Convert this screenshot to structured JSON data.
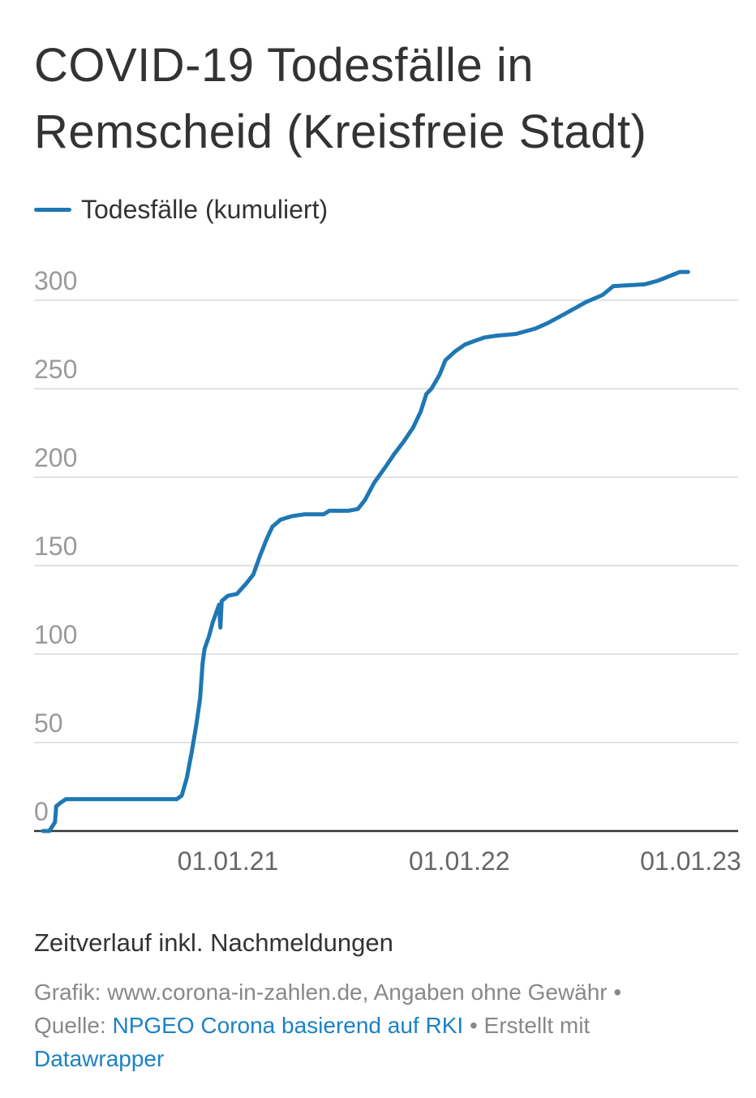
{
  "title": "COVID-19 Todesfälle in Remscheid (Kreisfreie Stadt)",
  "note": "Zeitverlauf inkl. Nachmeldungen",
  "footer": {
    "line1": "Grafik: www.corona-in-zahlen.de, Angaben ohne Gewähr •",
    "source_prefix": "Quelle: ",
    "source_link": "NPGEO Corona basierend auf RKI",
    "created_with": " • Erstellt mit",
    "tool_link": "Datawrapper"
  },
  "colors": {
    "line": "#1f77b4",
    "grid": "#e2e2e2",
    "axis": "#333333",
    "link": "#1b82c4"
  },
  "chart_data": {
    "type": "line",
    "title": "COVID-19 Todesfälle in Remscheid (Kreisfreie Stadt)",
    "legend": "top-left",
    "grid": true,
    "ylim": [
      0,
      300
    ],
    "yticks": [
      0,
      50,
      100,
      150,
      200,
      250,
      300
    ],
    "xlim": [
      "2020-03-01",
      "2023-03-17"
    ],
    "xticks": [
      {
        "date": "2021-01-01",
        "label": "01.01.21"
      },
      {
        "date": "2022-01-01",
        "label": "01.01.22"
      },
      {
        "date": "2023-01-01",
        "label": "01.01.23"
      }
    ],
    "series": [
      {
        "name": "Todesfälle (kumuliert)",
        "points": [
          [
            "2020-03-15",
            0
          ],
          [
            "2020-03-25",
            0
          ],
          [
            "2020-04-03",
            5
          ],
          [
            "2020-04-05",
            14
          ],
          [
            "2020-04-12",
            16
          ],
          [
            "2020-04-20",
            18
          ],
          [
            "2020-06-01",
            18
          ],
          [
            "2020-08-01",
            18
          ],
          [
            "2020-10-12",
            18
          ],
          [
            "2020-10-20",
            20
          ],
          [
            "2020-10-28",
            30
          ],
          [
            "2020-11-05",
            45
          ],
          [
            "2020-11-12",
            60
          ],
          [
            "2020-11-18",
            75
          ],
          [
            "2020-11-22",
            95
          ],
          [
            "2020-11-25",
            103
          ],
          [
            "2020-12-02",
            110
          ],
          [
            "2020-12-08",
            118
          ],
          [
            "2020-12-14",
            124
          ],
          [
            "2020-12-18",
            128
          ],
          [
            "2020-12-20",
            115
          ],
          [
            "2020-12-22",
            130
          ],
          [
            "2021-01-01",
            133
          ],
          [
            "2021-01-15",
            134
          ],
          [
            "2021-01-30",
            140
          ],
          [
            "2021-02-10",
            145
          ],
          [
            "2021-02-20",
            155
          ],
          [
            "2021-03-03",
            165
          ],
          [
            "2021-03-12",
            172
          ],
          [
            "2021-03-25",
            176
          ],
          [
            "2021-04-12",
            178
          ],
          [
            "2021-05-01",
            179
          ],
          [
            "2021-06-01",
            179
          ],
          [
            "2021-06-10",
            181
          ],
          [
            "2021-07-10",
            181
          ],
          [
            "2021-07-25",
            182
          ],
          [
            "2021-08-05",
            187
          ],
          [
            "2021-08-20",
            197
          ],
          [
            "2021-09-05",
            205
          ],
          [
            "2021-09-20",
            213
          ],
          [
            "2021-10-05",
            220
          ],
          [
            "2021-10-20",
            228
          ],
          [
            "2021-11-01",
            237
          ],
          [
            "2021-11-10",
            247
          ],
          [
            "2021-11-18",
            250
          ],
          [
            "2021-12-01",
            258
          ],
          [
            "2021-12-10",
            266
          ],
          [
            "2021-12-25",
            271
          ],
          [
            "2022-01-10",
            275
          ],
          [
            "2022-01-25",
            277
          ],
          [
            "2022-02-10",
            279
          ],
          [
            "2022-03-01",
            280
          ],
          [
            "2022-04-01",
            281
          ],
          [
            "2022-05-01",
            284
          ],
          [
            "2022-05-20",
            287
          ],
          [
            "2022-06-15",
            292
          ],
          [
            "2022-07-05",
            296
          ],
          [
            "2022-07-20",
            299
          ],
          [
            "2022-08-15",
            303
          ],
          [
            "2022-09-01",
            308
          ],
          [
            "2022-10-20",
            309
          ],
          [
            "2022-11-10",
            311
          ],
          [
            "2022-12-01",
            314
          ],
          [
            "2022-12-15",
            316
          ],
          [
            "2022-12-28",
            316
          ]
        ]
      }
    ]
  }
}
